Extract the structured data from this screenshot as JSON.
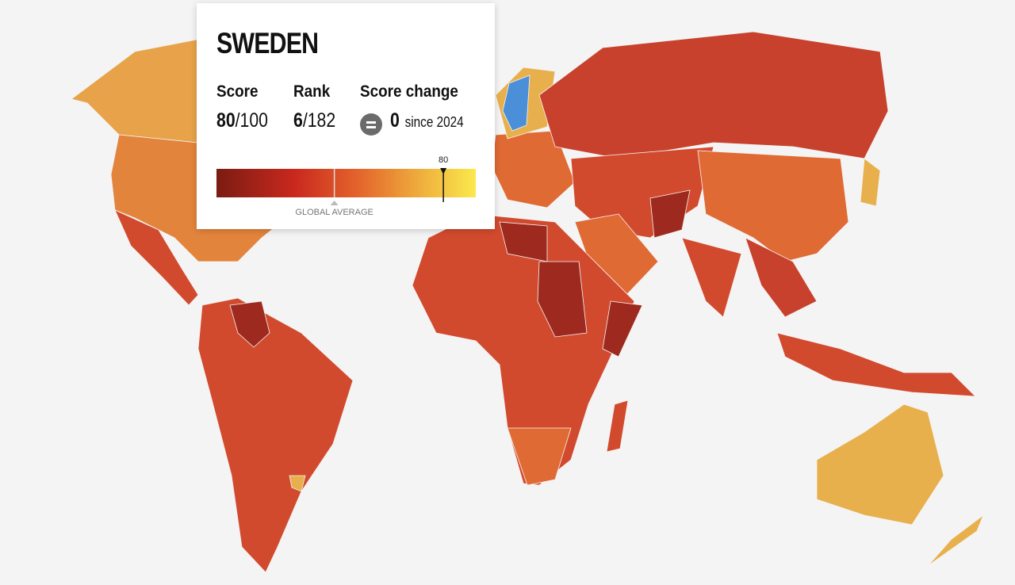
{
  "tooltip": {
    "country": "SWEDEN",
    "score_label": "Score",
    "score": 80,
    "score_max": "/100",
    "rank_label": "Rank",
    "rank": 6,
    "rank_total": "/182",
    "change_label": "Score change",
    "change": 0,
    "change_since": "since 2024",
    "scale": {
      "xlim": [
        3,
        91
      ],
      "marker": 80,
      "global_average": 43,
      "global_average_label": "GLOBAL AVERAGE"
    }
  }
}
